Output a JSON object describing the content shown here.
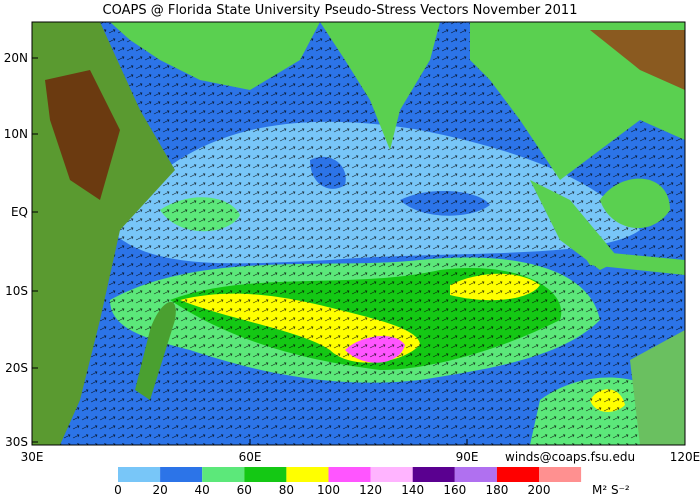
{
  "header": {
    "title": "COAPS @ Florida State University Pseudo-Stress Vectors November 2011"
  },
  "map": {
    "lat_labels": [
      "20N",
      "10N",
      "EQ",
      "10S",
      "20S",
      "30S"
    ],
    "lon_labels": [
      "30E",
      "60E",
      "90E",
      "120E"
    ]
  },
  "legend": {
    "ticks": [
      0,
      20,
      40,
      60,
      80,
      100,
      120,
      140,
      160,
      180,
      200
    ],
    "colors": [
      "#78c6f8",
      "#2c74e8",
      "#5ce87a",
      "#14c814",
      "#ffff00",
      "#ff55ff",
      "#ffb4ff",
      "#5a0090",
      "#b070f0",
      "#ff0000",
      "#ff9090"
    ],
    "unit": "M² S⁻²"
  },
  "credit": "winds@coaps.fsu.edu"
}
